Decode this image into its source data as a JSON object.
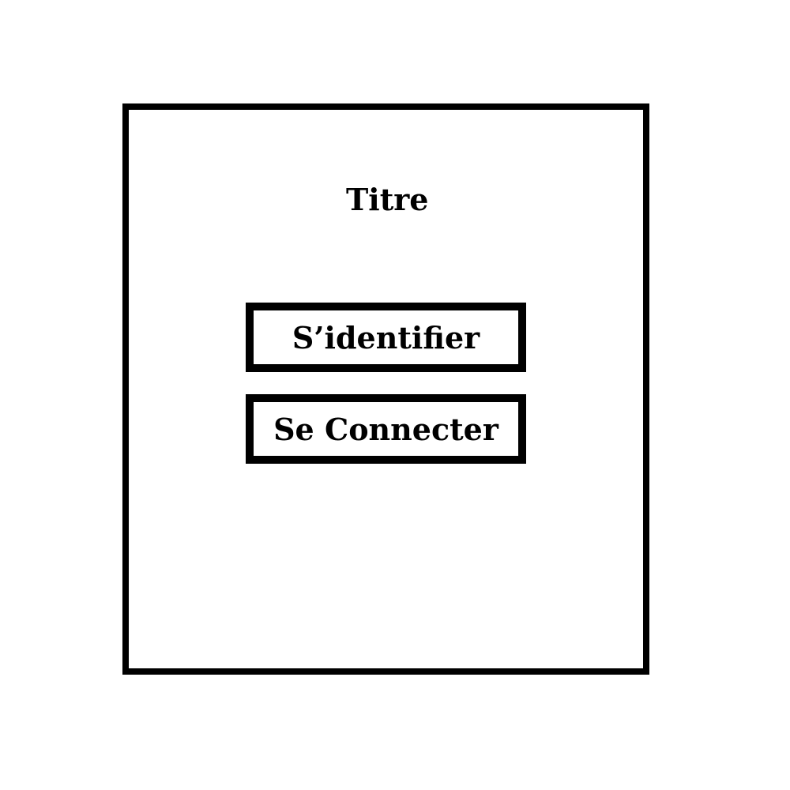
{
  "screen": {
    "title": "Titre"
  },
  "actions": {
    "identify_label": "S’identifier",
    "connect_label": "Se Connecter"
  },
  "colors": {
    "background": "#ffffff",
    "border": "#000000",
    "text": "#000000"
  }
}
